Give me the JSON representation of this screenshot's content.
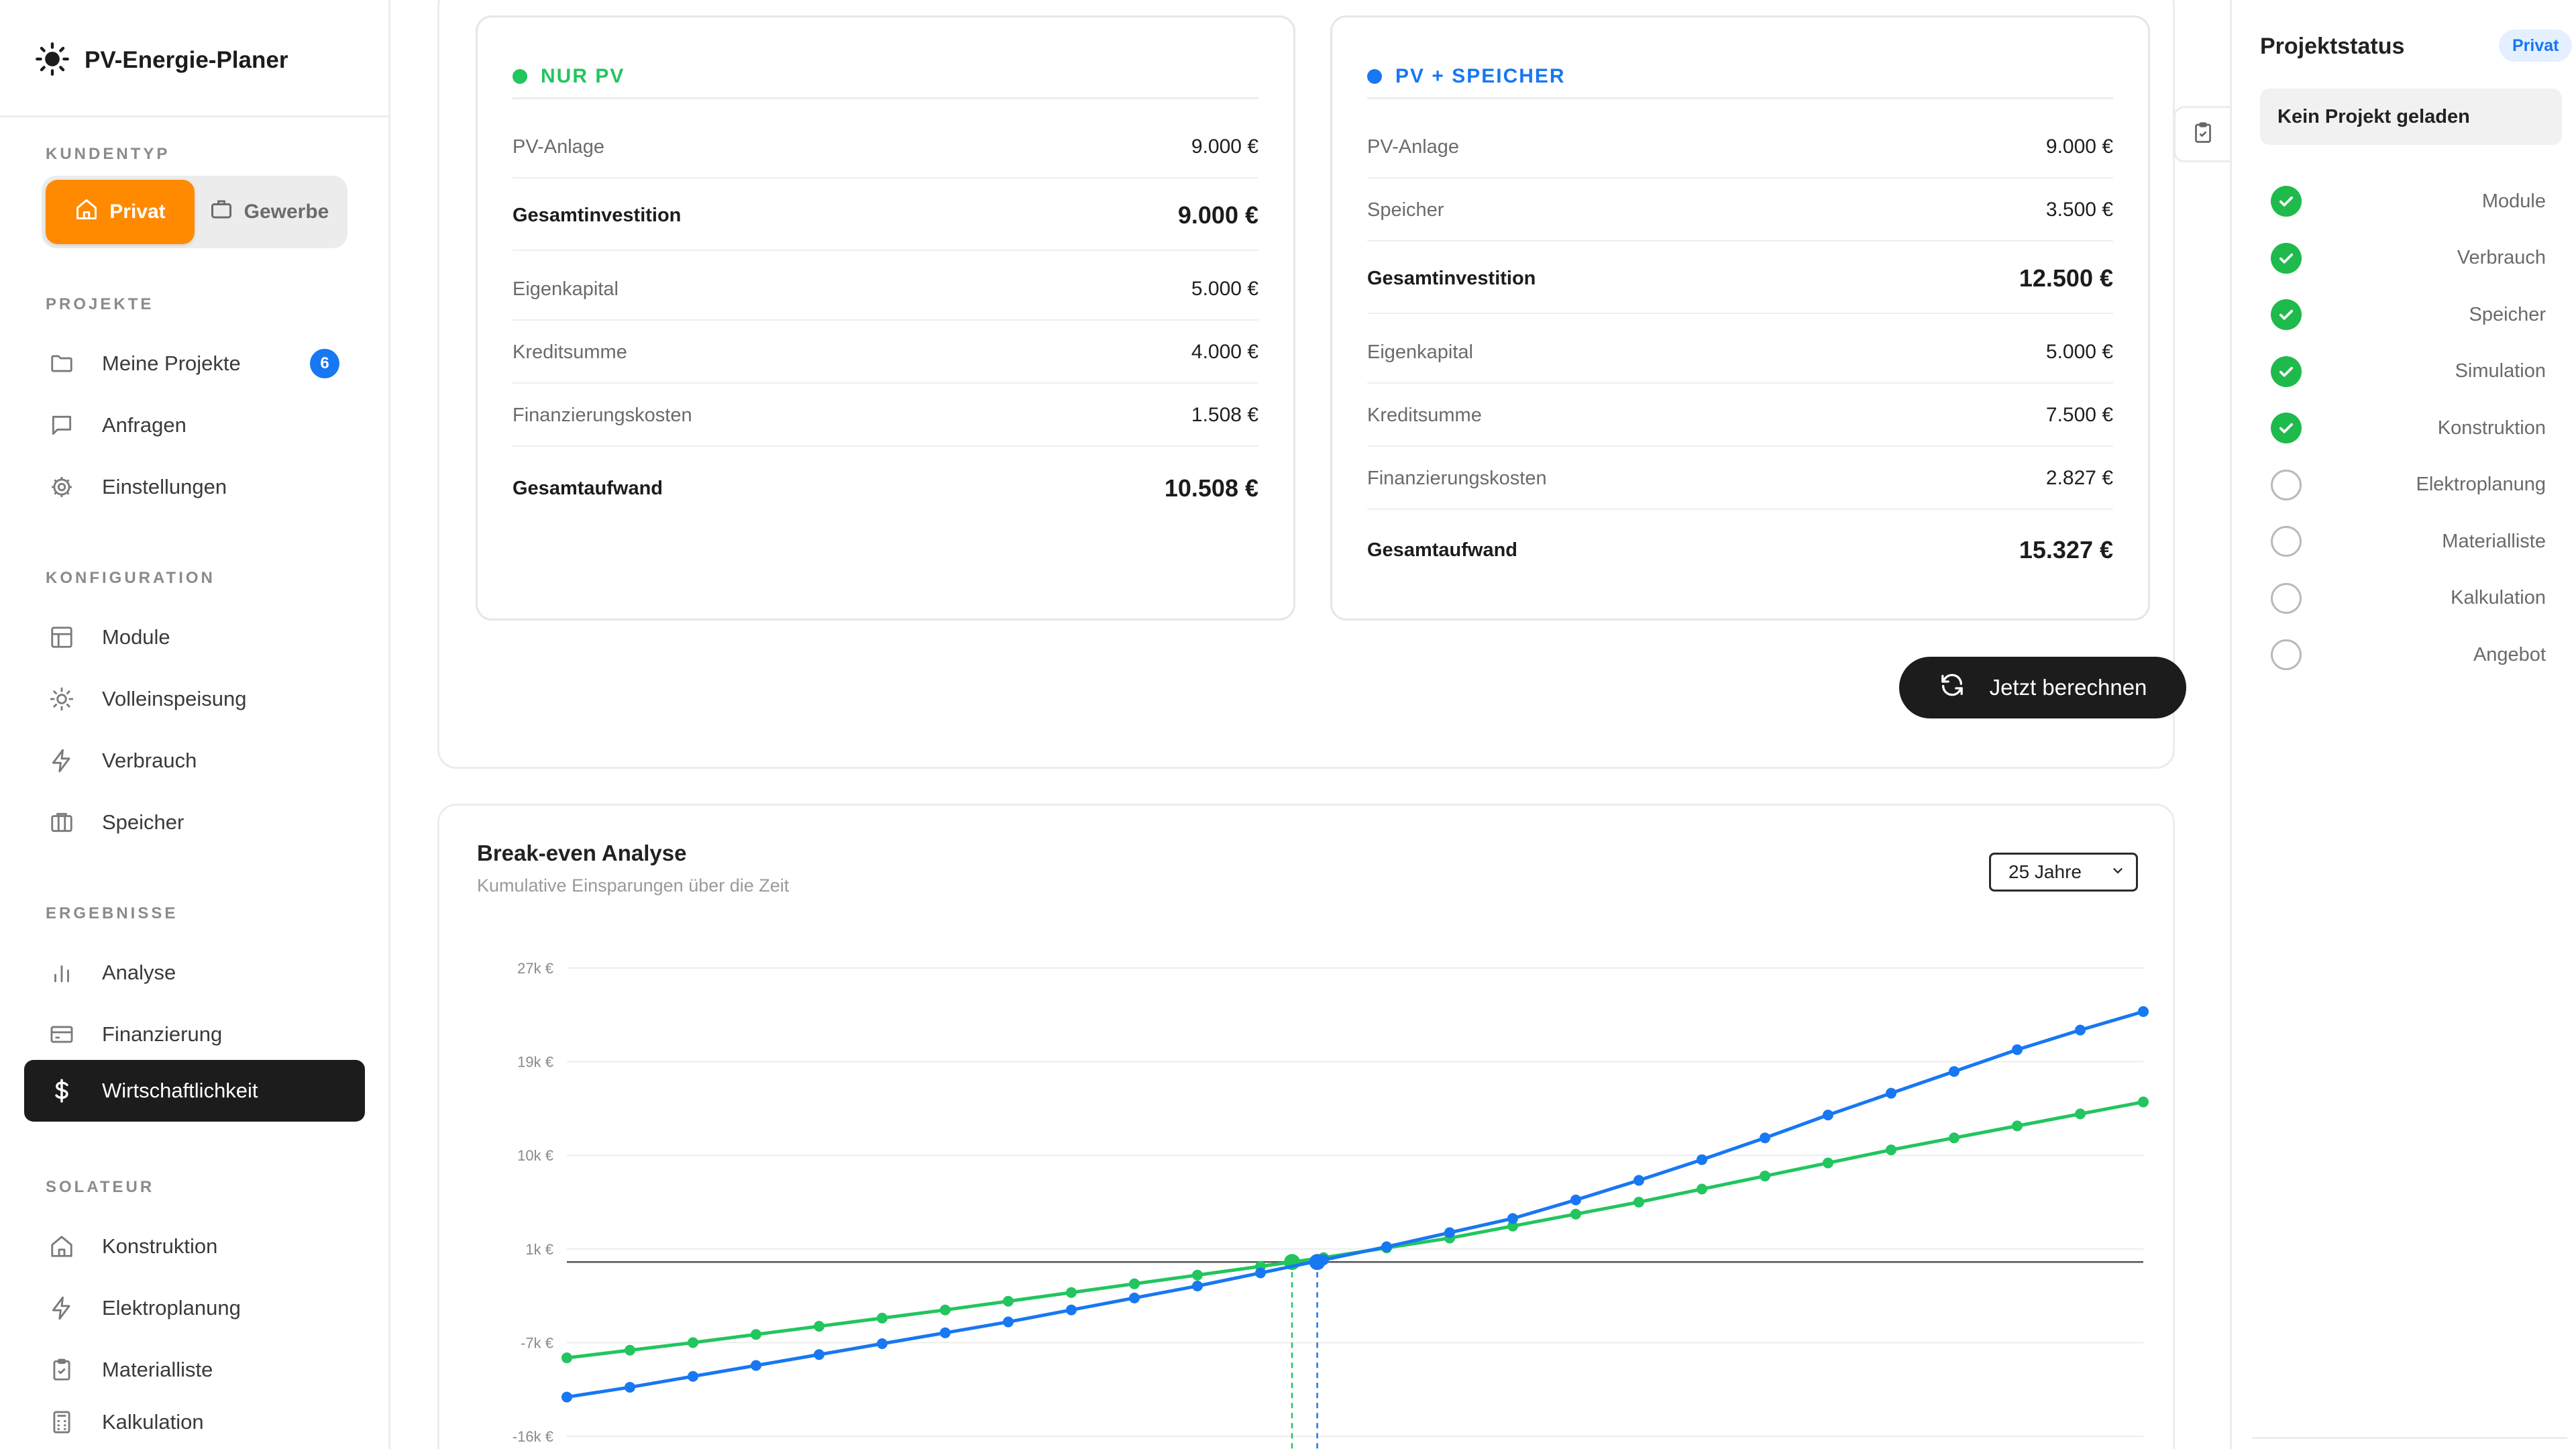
{
  "sidebar": {
    "brand": "PV-Energie-Planer",
    "kundentyp_label": "KUNDENTYP",
    "kundentyp": [
      {
        "label": "Privat",
        "active": true
      },
      {
        "label": "Gewerbe",
        "active": false
      }
    ],
    "sections": {
      "projekte": "PROJEKTE",
      "konfiguration": "KONFIGURATION",
      "ergebnisse": "ERGEBNISSE",
      "solateur": "SOLATEUR"
    },
    "items": {
      "meine_projekte": {
        "label": "Meine Projekte",
        "badge": "6",
        "icon": "folder-icon"
      },
      "anfragen": {
        "label": "Anfragen",
        "icon": "message-icon"
      },
      "einstellungen": {
        "label": "Einstellungen",
        "icon": "gear-icon"
      },
      "module": {
        "label": "Module",
        "icon": "layout-icon"
      },
      "volleinspeisung": {
        "label": "Volleinspeisung",
        "icon": "sun-icon"
      },
      "verbrauch": {
        "label": "Verbrauch",
        "icon": "bolt-icon"
      },
      "speicher": {
        "label": "Speicher",
        "icon": "battery-icon"
      },
      "analyse": {
        "label": "Analyse",
        "icon": "bar-chart-icon"
      },
      "finanzierung": {
        "label": "Finanzierung",
        "icon": "card-icon"
      },
      "wirtschaftlichkeit": {
        "label": "Wirtschaftlichkeit",
        "icon": "dollar-icon",
        "active": true
      },
      "konstruktion": {
        "label": "Konstruktion",
        "icon": "home-icon"
      },
      "elektroplanung": {
        "label": "Elektroplanung",
        "icon": "bolt-icon"
      },
      "materialliste": {
        "label": "Materialliste",
        "icon": "clipboard-icon"
      },
      "kalkulation": {
        "label": "Kalkulation",
        "icon": "calculator-icon"
      }
    }
  },
  "costs": {
    "nur_pv": {
      "title": "NUR PV",
      "color": "#22c55e",
      "rows": [
        {
          "label": "PV-Anlage",
          "value": "9.000 €",
          "bold": false
        },
        {
          "label": "Gesamtinvestition",
          "value": "9.000 €",
          "bold": true
        },
        {
          "label": "Eigenkapital",
          "value": "5.000 €",
          "bold": false
        },
        {
          "label": "Kreditsumme",
          "value": "4.000 €",
          "bold": false
        },
        {
          "label": "Finanzierungskosten",
          "value": "1.508 €",
          "bold": false
        },
        {
          "label": "Gesamtaufwand",
          "value": "10.508 €",
          "bold": true
        }
      ]
    },
    "pv_speicher": {
      "title": "PV + SPEICHER",
      "color": "#1877f2",
      "rows": [
        {
          "label": "PV-Anlage",
          "value": "9.000 €",
          "bold": false
        },
        {
          "label": "Speicher",
          "value": "3.500 €",
          "bold": false
        },
        {
          "label": "Gesamtinvestition",
          "value": "12.500 €",
          "bold": true
        },
        {
          "label": "Eigenkapital",
          "value": "5.000 €",
          "bold": false
        },
        {
          "label": "Kreditsumme",
          "value": "7.500 €",
          "bold": false
        },
        {
          "label": "Finanzierungskosten",
          "value": "2.827 €",
          "bold": false
        },
        {
          "label": "Gesamtaufwand",
          "value": "15.327 €",
          "bold": true
        }
      ]
    },
    "calculate_label": "Jetzt berechnen"
  },
  "breakeven": {
    "title": "Break-even Analyse",
    "subtitle": "Kumulative Einsparungen über die Zeit",
    "period_select": "25 Jahre"
  },
  "chart_data": {
    "type": "line",
    "title": "Break-even Analyse",
    "subtitle": "Kumulative Einsparungen über die Zeit",
    "y_ticks": [
      "27k €",
      "19k €",
      "10k €",
      "1k €",
      "-7k €",
      "-16k €"
    ],
    "ylim": [
      -16000,
      27000
    ],
    "x": [
      0,
      1,
      2,
      3,
      4,
      5,
      6,
      7,
      8,
      9,
      10,
      11,
      12,
      13,
      14,
      15,
      16,
      17,
      18,
      19,
      20,
      21,
      22,
      23,
      24,
      25
    ],
    "series": [
      {
        "color": "#22c55e",
        "values": [
          -8800,
          -8100,
          -7400,
          -6650,
          -5900,
          -5150,
          -4400,
          -3600,
          -2800,
          -2000,
          -1200,
          -400,
          400,
          1300,
          2200,
          3300,
          4400,
          5500,
          6700,
          7900,
          9100,
          10300,
          11400,
          12500,
          13600,
          14700
        ],
        "breakeven_year": 11.5
      },
      {
        "color": "#1877f2",
        "values": [
          -12400,
          -11500,
          -10500,
          -9500,
          -8500,
          -7500,
          -6500,
          -5500,
          -4400,
          -3300,
          -2200,
          -1000,
          200,
          1400,
          2700,
          4000,
          5700,
          7500,
          9400,
          11400,
          13500,
          15500,
          17500,
          19500,
          21300,
          23000
        ],
        "breakeven_year": 11.9
      }
    ],
    "zero_line": 0,
    "grid": true
  },
  "status": {
    "title": "Projektstatus",
    "badge": "Privat",
    "project": "Kein Projekt geladen",
    "steps": [
      {
        "label": "Module",
        "done": true
      },
      {
        "label": "Verbrauch",
        "done": true
      },
      {
        "label": "Speicher",
        "done": true
      },
      {
        "label": "Simulation",
        "done": true
      },
      {
        "label": "Konstruktion",
        "done": true
      },
      {
        "label": "Elektroplanung",
        "done": false
      },
      {
        "label": "Materialliste",
        "done": false
      },
      {
        "label": "Kalkulation",
        "done": false
      },
      {
        "label": "Angebot",
        "done": false
      }
    ]
  }
}
